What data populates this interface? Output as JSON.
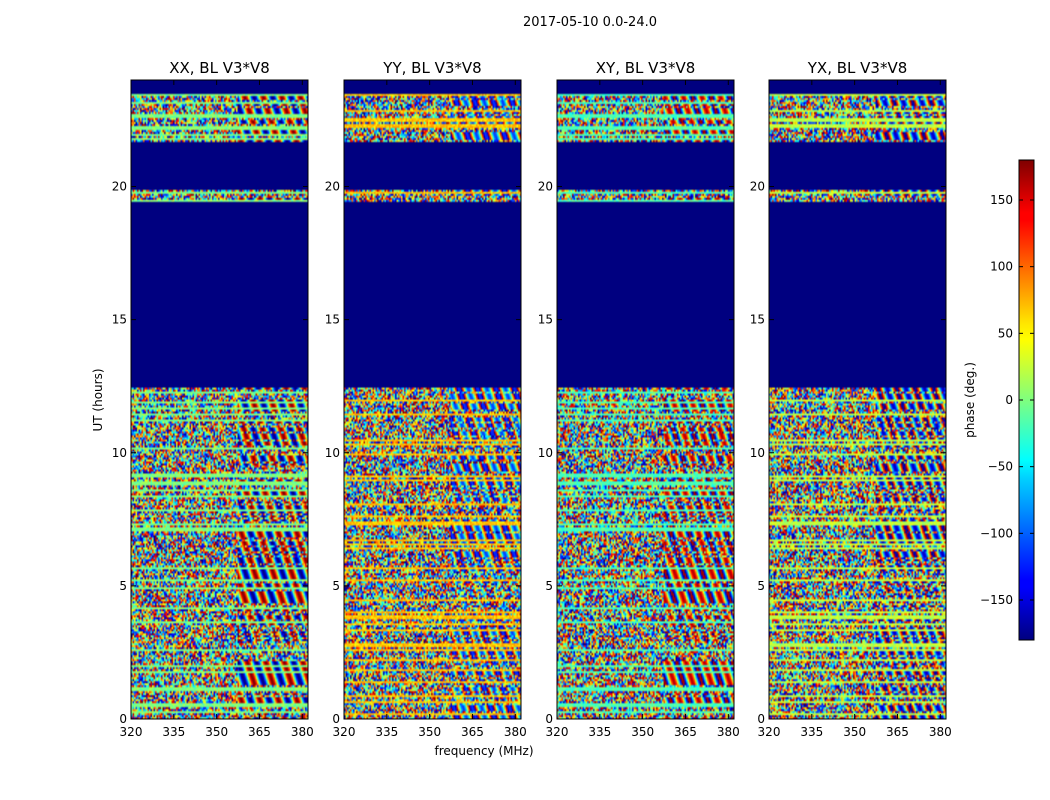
{
  "figure": {
    "suptitle": "2017-05-10 0.0-24.0",
    "ylabel": "UT (hours)",
    "xlabel": "frequency (MHz)"
  },
  "chart_data": {
    "type": "heatmap",
    "title": "2017-05-10 0.0-24.0",
    "xlabel": "frequency (MHz)",
    "ylabel": "UT (hours)",
    "xlim": [
      320,
      382
    ],
    "ylim": [
      0,
      24
    ],
    "xticks": [
      320,
      335,
      350,
      365,
      380
    ],
    "yticks": [
      0,
      5,
      10,
      15,
      20
    ],
    "colormap": "jet",
    "colorbar": {
      "label": "phase (deg.)",
      "range": [
        -180,
        180
      ],
      "ticks": [
        -150,
        -100,
        -50,
        0,
        50,
        100,
        150
      ],
      "tick_labels": [
        "−150",
        "−100",
        "−50",
        "0",
        "50",
        "100",
        "150"
      ]
    },
    "panels": [
      {
        "title": "XX, BL V3*V8",
        "pol": "XX"
      },
      {
        "title": "YY, BL V3*V8",
        "pol": "YY"
      },
      {
        "title": "XY, BL V3*V8",
        "pol": "XY"
      },
      {
        "title": "YX, BL V3*V8",
        "pol": "YX"
      }
    ],
    "flagged_value": -180,
    "flagged_ut_ranges": [
      [
        12.45,
        19.4
      ],
      [
        19.9,
        21.7
      ],
      [
        23.5,
        24.0
      ]
    ],
    "valid_ut_ranges": [
      [
        0,
        12.45
      ],
      [
        19.4,
        19.9
      ],
      [
        21.7,
        23.5
      ]
    ]
  }
}
